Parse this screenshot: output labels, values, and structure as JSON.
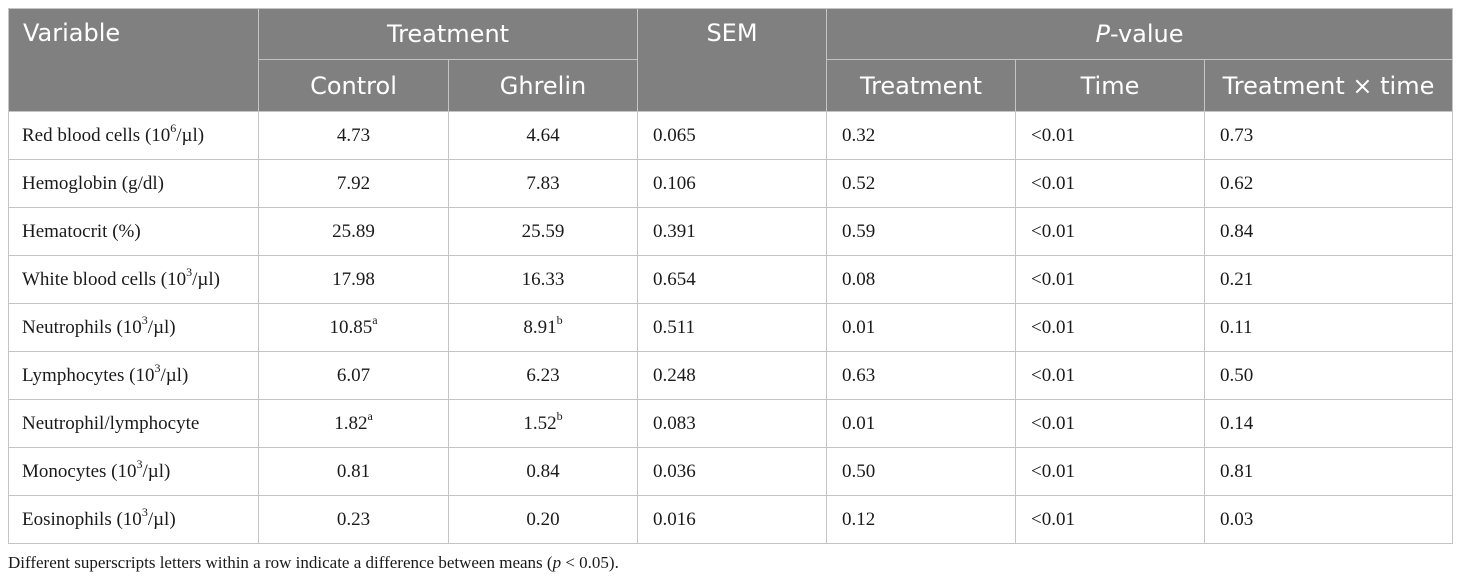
{
  "table": {
    "headers": {
      "variable": "Variable",
      "treatment_group": "Treatment",
      "sem": "SEM",
      "pvalue_group_italic": "P",
      "pvalue_group_rest": "-value",
      "control": "Control",
      "ghrelin": "Ghrelin",
      "p_treatment": "Treatment",
      "p_time": "Time",
      "p_interaction": "Treatment × time"
    },
    "rows": [
      {
        "variable": "Red blood cells (10",
        "sup": "6",
        "unit": "/µl)",
        "control": "4.73",
        "control_sup": "",
        "ghrelin": "4.64",
        "ghrelin_sup": "",
        "sem": "0.065",
        "p_treatment": "0.32",
        "p_time": "<0.01",
        "p_interaction": "0.73"
      },
      {
        "variable": "Hemoglobin (g/dl)",
        "sup": "",
        "unit": "",
        "control": "7.92",
        "control_sup": "",
        "ghrelin": "7.83",
        "ghrelin_sup": "",
        "sem": "0.106",
        "p_treatment": "0.52",
        "p_time": "<0.01",
        "p_interaction": "0.62"
      },
      {
        "variable": "Hematocrit (%)",
        "sup": "",
        "unit": "",
        "control": "25.89",
        "control_sup": "",
        "ghrelin": "25.59",
        "ghrelin_sup": "",
        "sem": "0.391",
        "p_treatment": "0.59",
        "p_time": "<0.01",
        "p_interaction": "0.84"
      },
      {
        "variable": "White blood cells (10",
        "sup": "3",
        "unit": "/µl)",
        "control": "17.98",
        "control_sup": "",
        "ghrelin": "16.33",
        "ghrelin_sup": "",
        "sem": "0.654",
        "p_treatment": "0.08",
        "p_time": "<0.01",
        "p_interaction": "0.21"
      },
      {
        "variable": "Neutrophils (10",
        "sup": "3",
        "unit": "/µl)",
        "control": "10.85",
        "control_sup": "a",
        "ghrelin": "8.91",
        "ghrelin_sup": "b",
        "sem": "0.511",
        "p_treatment": "0.01",
        "p_time": "<0.01",
        "p_interaction": "0.11"
      },
      {
        "variable": "Lymphocytes (10",
        "sup": "3",
        "unit": "/µl)",
        "control": "6.07",
        "control_sup": "",
        "ghrelin": "6.23",
        "ghrelin_sup": "",
        "sem": "0.248",
        "p_treatment": "0.63",
        "p_time": "<0.01",
        "p_interaction": "0.50"
      },
      {
        "variable": "Neutrophil/lymphocyte",
        "sup": "",
        "unit": "",
        "control": "1.82",
        "control_sup": "a",
        "ghrelin": "1.52",
        "ghrelin_sup": "b",
        "sem": "0.083",
        "p_treatment": "0.01",
        "p_time": "<0.01",
        "p_interaction": "0.14"
      },
      {
        "variable": "Monocytes (10",
        "sup": "3",
        "unit": "/µl)",
        "control": "0.81",
        "control_sup": "",
        "ghrelin": "0.84",
        "ghrelin_sup": "",
        "sem": "0.036",
        "p_treatment": "0.50",
        "p_time": "<0.01",
        "p_interaction": "0.81"
      },
      {
        "variable": "Eosinophils (10",
        "sup": "3",
        "unit": "/µl)",
        "control": "0.23",
        "control_sup": "",
        "ghrelin": "0.20",
        "ghrelin_sup": "",
        "sem": "0.016",
        "p_treatment": "0.12",
        "p_time": "<0.01",
        "p_interaction": "0.03"
      }
    ]
  },
  "footnote": {
    "before": "Different superscripts letters within a row indicate a difference between means (",
    "italic": "p",
    "after": " < 0.05)."
  }
}
